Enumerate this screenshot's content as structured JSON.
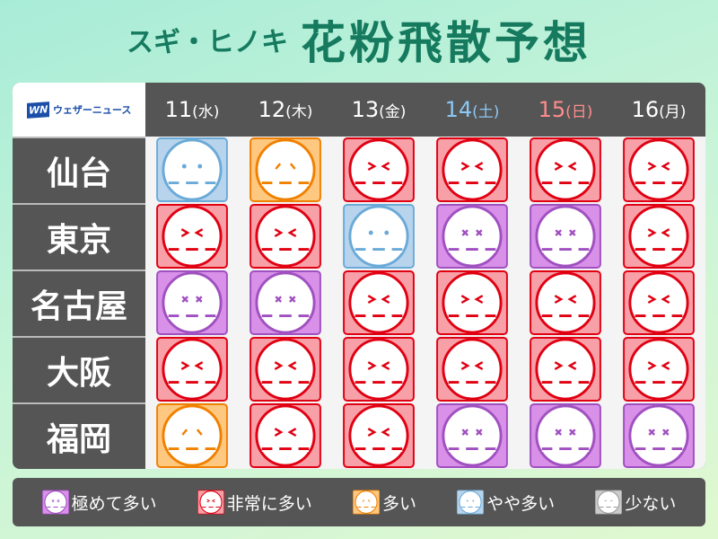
{
  "title": {
    "subtitle": "スギ・ヒノキ",
    "main": "花粉飛散予想"
  },
  "logo": {
    "mark": "WN",
    "text": "ウェザーニュース"
  },
  "days": [
    {
      "num": "11",
      "dow": "(水)",
      "color": "#ffffff"
    },
    {
      "num": "12",
      "dow": "(木)",
      "color": "#ffffff"
    },
    {
      "num": "13",
      "dow": "(金)",
      "color": "#ffffff"
    },
    {
      "num": "14",
      "dow": "(土)",
      "color": "#8cc8f4"
    },
    {
      "num": "15",
      "dow": "(日)",
      "color": "#ff8c8c"
    },
    {
      "num": "16",
      "dow": "(月)",
      "color": "#ffffff"
    }
  ],
  "levels": {
    "very_high": {
      "label": "極めて多い",
      "stroke": "#a050c0",
      "fill": "#d890e8",
      "eyes": "x"
    },
    "high": {
      "label": "非常に多い",
      "stroke": "#e00012",
      "fill": "#f8a0a8",
      "eyes": "><"
    },
    "medium": {
      "label": "多い",
      "stroke": "#f08000",
      "fill": "#ffc880",
      "eyes": "^"
    },
    "slightly": {
      "label": "やや多い",
      "stroke": "#6aaad8",
      "fill": "#b8d4ec",
      "eyes": "dot"
    },
    "low": {
      "label": "少ない",
      "stroke": "#999999",
      "fill": "#cccccc",
      "eyes": "arc"
    }
  },
  "legend_order": [
    "very_high",
    "high",
    "medium",
    "slightly",
    "low"
  ],
  "rows": [
    {
      "city": "仙台",
      "values": [
        "slightly",
        "medium",
        "high",
        "high",
        "high",
        "high"
      ]
    },
    {
      "city": "東京",
      "values": [
        "high",
        "high",
        "slightly",
        "very_high",
        "very_high",
        "high"
      ]
    },
    {
      "city": "名古屋",
      "values": [
        "very_high",
        "very_high",
        "high",
        "high",
        "high",
        "high"
      ]
    },
    {
      "city": "大阪",
      "values": [
        "high",
        "high",
        "high",
        "high",
        "high",
        "high"
      ]
    },
    {
      "city": "福岡",
      "values": [
        "medium",
        "high",
        "high",
        "very_high",
        "very_high",
        "very_high"
      ]
    }
  ]
}
